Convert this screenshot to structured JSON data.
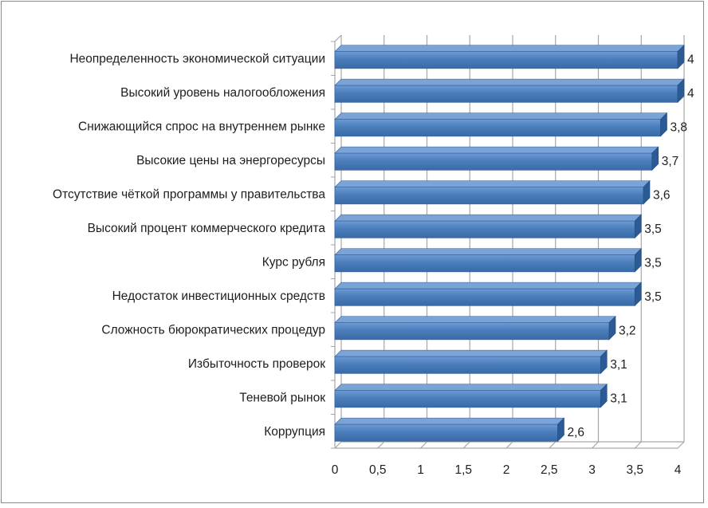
{
  "chart_data": {
    "type": "bar",
    "orientation": "horizontal",
    "categories": [
      "Неопределенность экономической ситуации",
      "Высокий уровень налогообложения",
      "Снижающийся спрос на внутреннем рынке",
      "Высокие цены на энергоресурсы",
      "Отсутствие чёткой программы у правительства",
      "Высокий процент коммерческого кредита",
      "Курс рубля",
      "Недостаток инвестиционных средств",
      "Сложность бюрократических процедур",
      "Избыточность проверок",
      "Теневой рынок",
      "Коррупция"
    ],
    "values": [
      4,
      4,
      3.8,
      3.7,
      3.6,
      3.5,
      3.5,
      3.5,
      3.2,
      3.1,
      3.1,
      2.6
    ],
    "data_labels": [
      "4",
      "4",
      "3,8",
      "3,7",
      "3,6",
      "3,5",
      "3,5",
      "3,5",
      "3,2",
      "3,1",
      "3,1",
      "2,6"
    ],
    "x_ticks": [
      "0",
      "0,5",
      "1",
      "1,5",
      "2",
      "2,5",
      "3",
      "3,5",
      "4"
    ],
    "xlim": [
      0,
      4
    ],
    "grid": true,
    "legend": "none",
    "style": "3d",
    "colors": {
      "bar": "#4a7ebb",
      "bar_top": "#7ba3d6",
      "bar_side": "#2b5a95",
      "grid": "#a6a6a6"
    }
  }
}
